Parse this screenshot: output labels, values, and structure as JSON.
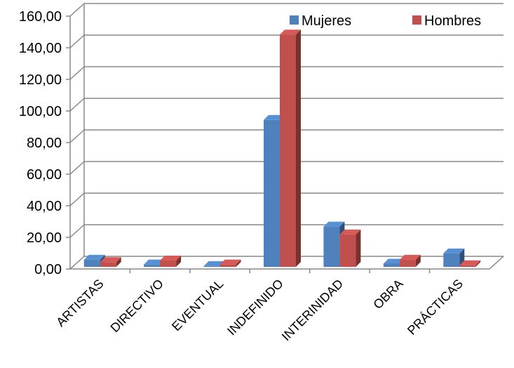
{
  "chart_data": {
    "type": "bar",
    "categories": [
      "ARTISTAS",
      "DIRECTIVO",
      "EVENTUAL",
      "INDEFINIDO",
      "INTERINIDAD",
      "OBRA",
      "PRÁCTICAS"
    ],
    "series": [
      {
        "name": "Mujeres",
        "color": "#4f81bd",
        "values": [
          4.5,
          1.5,
          0.5,
          93,
          25.5,
          2,
          8.5
        ]
      },
      {
        "name": "Hombres",
        "color": "#c0504d",
        "values": [
          3,
          4,
          1.5,
          147,
          20.5,
          4.5,
          1
        ]
      }
    ],
    "ylim": [
      0,
      160
    ],
    "yticks": [
      "0,00",
      "20,00",
      "40,00",
      "60,00",
      "80,00",
      "100,00",
      "120,00",
      "140,00",
      "160,00"
    ],
    "grid": true,
    "legend_position": "top-right",
    "title": "",
    "xlabel": "",
    "ylabel": ""
  }
}
